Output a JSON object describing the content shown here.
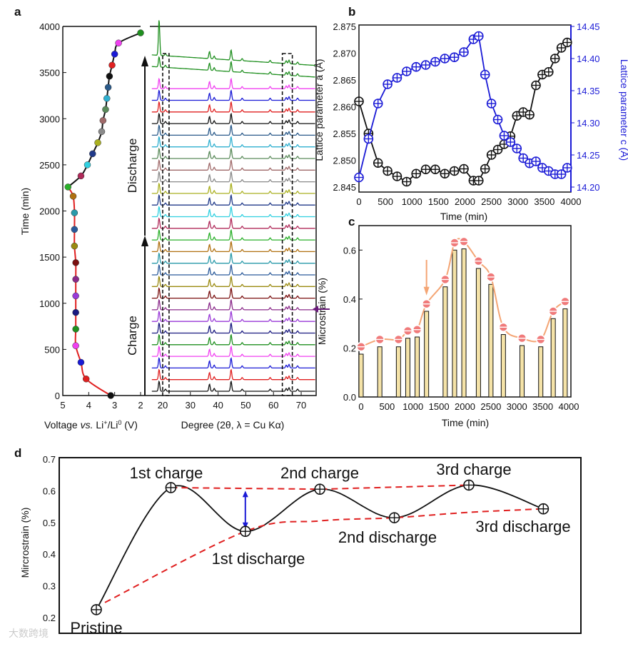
{
  "panel_labels": {
    "a": "a",
    "b": "b",
    "c": "c",
    "d": "d"
  },
  "colors": {
    "blue": "#1a1ad6",
    "red": "#e02020",
    "orange": "#f4a574",
    "bar": "#f5e3a8",
    "marker_c": "#f07a7a",
    "purple": "#6a1b7a"
  },
  "chart_data": [
    {
      "id": "a-voltage",
      "type": "scatter",
      "xlabel_parts": [
        "Voltage ",
        "vs.",
        " Li",
        "+",
        "/Li",
        "0",
        " (V)"
      ],
      "ylabel": "Time (min)",
      "xlim": [
        5,
        2
      ],
      "ylim": [
        0,
        4000
      ],
      "xticks": [
        "5",
        "4",
        "3",
        "2"
      ],
      "xtick_values": [
        5,
        4,
        3,
        2
      ],
      "yticks": [
        "0",
        "500",
        "1000",
        "1500",
        "2000",
        "2500",
        "3000",
        "3500",
        "4000"
      ],
      "ytick_values": [
        0,
        500,
        1000,
        1500,
        2000,
        2500,
        3000,
        3500,
        4000
      ],
      "charge_curve_color": "#e02020",
      "discharge_curve_color": "#111111",
      "points": [
        {
          "v": 3.15,
          "t": 0,
          "c": "#111111"
        },
        {
          "v": 4.1,
          "t": 180,
          "c": "#e02020"
        },
        {
          "v": 4.3,
          "t": 360,
          "c": "#1a1ad6"
        },
        {
          "v": 4.5,
          "t": 540,
          "c": "#f040f0"
        },
        {
          "v": 4.5,
          "t": 720,
          "c": "#1f8f1f"
        },
        {
          "v": 4.5,
          "t": 900,
          "c": "#1a1a80"
        },
        {
          "v": 4.5,
          "t": 1080,
          "c": "#9a3ad8"
        },
        {
          "v": 4.5,
          "t": 1260,
          "c": "#8a2a8a"
        },
        {
          "v": 4.5,
          "t": 1440,
          "c": "#7a1010"
        },
        {
          "v": 4.55,
          "t": 1620,
          "c": "#9a8a10"
        },
        {
          "v": 4.55,
          "t": 1800,
          "c": "#2a5a9a"
        },
        {
          "v": 4.55,
          "t": 1980,
          "c": "#2a9aaa"
        },
        {
          "v": 4.6,
          "t": 2160,
          "c": "#b07010"
        },
        {
          "v": 4.8,
          "t": 2260,
          "c": "#2ab02a"
        },
        {
          "v": 4.3,
          "t": 2380,
          "c": "#b02a5a"
        },
        {
          "v": 4.05,
          "t": 2500,
          "c": "#30d0e0"
        },
        {
          "v": 3.85,
          "t": 2620,
          "c": "#203a8a"
        },
        {
          "v": 3.65,
          "t": 2740,
          "c": "#aab020"
        },
        {
          "v": 3.5,
          "t": 2860,
          "c": "#8a8a8a"
        },
        {
          "v": 3.45,
          "t": 2980,
          "c": "#a06a6a"
        },
        {
          "v": 3.35,
          "t": 3100,
          "c": "#5a8a5a"
        },
        {
          "v": 3.3,
          "t": 3220,
          "c": "#30b0d0"
        },
        {
          "v": 3.25,
          "t": 3340,
          "c": "#2a5a8a"
        },
        {
          "v": 3.2,
          "t": 3460,
          "c": "#111111"
        },
        {
          "v": 3.1,
          "t": 3580,
          "c": "#e02020"
        },
        {
          "v": 3.0,
          "t": 3700,
          "c": "#1a1ad6"
        },
        {
          "v": 2.85,
          "t": 3820,
          "c": "#f040f0"
        },
        {
          "v": 2.0,
          "t": 3930,
          "c": "#1f8f1f"
        }
      ]
    },
    {
      "id": "a-xrd",
      "type": "line",
      "xlabel": "Degree (2θ, λ = Cu Kα)",
      "xlim": [
        14.6,
        75.4
      ],
      "xticks": [
        "20",
        "30",
        "40",
        "50",
        "60",
        "70"
      ],
      "xtick_values": [
        20,
        30,
        40,
        50,
        60,
        70
      ],
      "peaks_deg": [
        18.7,
        21,
        36.9,
        38.6,
        44.7,
        48.7,
        58.8,
        64.6,
        65.6,
        68.7
      ],
      "peak_heights": [
        14,
        3,
        10,
        4,
        14,
        3,
        3,
        4,
        5,
        3
      ],
      "trace_count": 29,
      "highlight_regions_deg": [
        [
          20,
          22.3
        ],
        [
          63.2,
          66.8
        ]
      ],
      "annotations": [
        "Charge",
        "Discharge"
      ]
    },
    {
      "id": "b",
      "type": "line",
      "xlabel": "Time (min)",
      "ylabel": "Lattice parameter a (Å)",
      "ylabel_right": "Lattice parameter c (Å)",
      "xlim": [
        0,
        4000
      ],
      "ylim": [
        2.845,
        2.875
      ],
      "ylim_right": [
        14.2,
        14.45
      ],
      "xticks": [
        "0",
        "500",
        "1000",
        "1500",
        "2000",
        "2500",
        "3000",
        "3500",
        "4000"
      ],
      "xtick_values": [
        0,
        500,
        1000,
        1500,
        2000,
        2500,
        3000,
        3500,
        4000
      ],
      "yticks": [
        "2.845",
        "2.850",
        "2.855",
        "2.860",
        "2.865",
        "2.870",
        "2.875"
      ],
      "ytick_values": [
        2.845,
        2.85,
        2.855,
        2.86,
        2.865,
        2.87,
        2.875
      ],
      "yticks_right": [
        "14.20",
        "14.25",
        "14.30",
        "14.35",
        "14.40",
        "14.45"
      ],
      "ytick_values_right": [
        14.2,
        14.25,
        14.3,
        14.35,
        14.4,
        14.45
      ],
      "x": [
        0,
        180,
        360,
        540,
        720,
        900,
        1080,
        1260,
        1440,
        1620,
        1800,
        1980,
        2160,
        2260,
        2380,
        2500,
        2620,
        2740,
        2860,
        2980,
        3100,
        3220,
        3340,
        3460,
        3580,
        3700,
        3820,
        3930
      ],
      "series": [
        {
          "name": "a",
          "axis": "left",
          "color": "#111111",
          "values": [
            2.861,
            2.855,
            2.8495,
            2.848,
            2.847,
            2.846,
            2.8475,
            2.8483,
            2.8483,
            2.8475,
            2.848,
            2.8484,
            2.8462,
            2.8462,
            2.8484,
            2.851,
            2.852,
            2.853,
            2.8545,
            2.8583,
            2.859,
            2.8585,
            2.864,
            2.866,
            2.8665,
            2.869,
            2.871,
            2.872
          ]
        },
        {
          "name": "c",
          "axis": "right",
          "color": "#1a1ad6",
          "values": [
            14.215,
            14.275,
            14.33,
            14.36,
            14.37,
            14.38,
            14.387,
            14.39,
            14.395,
            14.4,
            14.402,
            14.41,
            14.43,
            14.435,
            14.375,
            14.33,
            14.305,
            14.28,
            14.27,
            14.26,
            14.245,
            14.237,
            14.24,
            14.23,
            14.225,
            14.22,
            14.22,
            14.23
          ]
        }
      ]
    },
    {
      "id": "c",
      "type": "bar",
      "xlabel": "Time (min)",
      "ylabel": "Microstrain (%)",
      "xlim": [
        0,
        4000
      ],
      "ylim": [
        0,
        0.7
      ],
      "xticks": [
        "0",
        "500",
        "1000",
        "1500",
        "2000",
        "2500",
        "3000",
        "3500",
        "4000"
      ],
      "xtick_values": [
        0,
        500,
        1000,
        1500,
        2000,
        2500,
        3000,
        3500,
        4000
      ],
      "yticks": [
        "0.0",
        "0.2",
        "0.4",
        "0.6"
      ],
      "ytick_values": [
        0,
        0.2,
        0.4,
        0.6
      ],
      "x": [
        0,
        360,
        720,
        900,
        1080,
        1260,
        1620,
        1800,
        1980,
        2260,
        2500,
        2740,
        3100,
        3460,
        3700,
        3930
      ],
      "bar_values": [
        0.175,
        0.205,
        0.205,
        0.24,
        0.245,
        0.35,
        0.45,
        0.6,
        0.605,
        0.525,
        0.46,
        0.255,
        0.21,
        0.205,
        0.32,
        0.36
      ],
      "line_values": [
        0.205,
        0.235,
        0.235,
        0.27,
        0.275,
        0.38,
        0.48,
        0.63,
        0.635,
        0.555,
        0.49,
        0.285,
        0.24,
        0.235,
        0.35,
        0.39
      ],
      "arrow_at_time": 1260
    },
    {
      "id": "d",
      "type": "line",
      "ylabel": "Mircrostrain (%)",
      "ylim": [
        0.15,
        0.7
      ],
      "yticks": [
        "0.2",
        "0.3",
        "0.4",
        "0.5",
        "0.6",
        "0.7"
      ],
      "ytick_values": [
        0.2,
        0.3,
        0.4,
        0.5,
        0.6,
        0.7
      ],
      "categories": [
        "Pristine",
        "1st charge",
        "1st discharge",
        "2nd charge",
        "2nd discharge",
        "3rd charge",
        "3rd discharge"
      ],
      "values": [
        0.225,
        0.61,
        0.472,
        0.605,
        0.515,
        0.618,
        0.543
      ]
    }
  ],
  "watermark": "大数跨境"
}
